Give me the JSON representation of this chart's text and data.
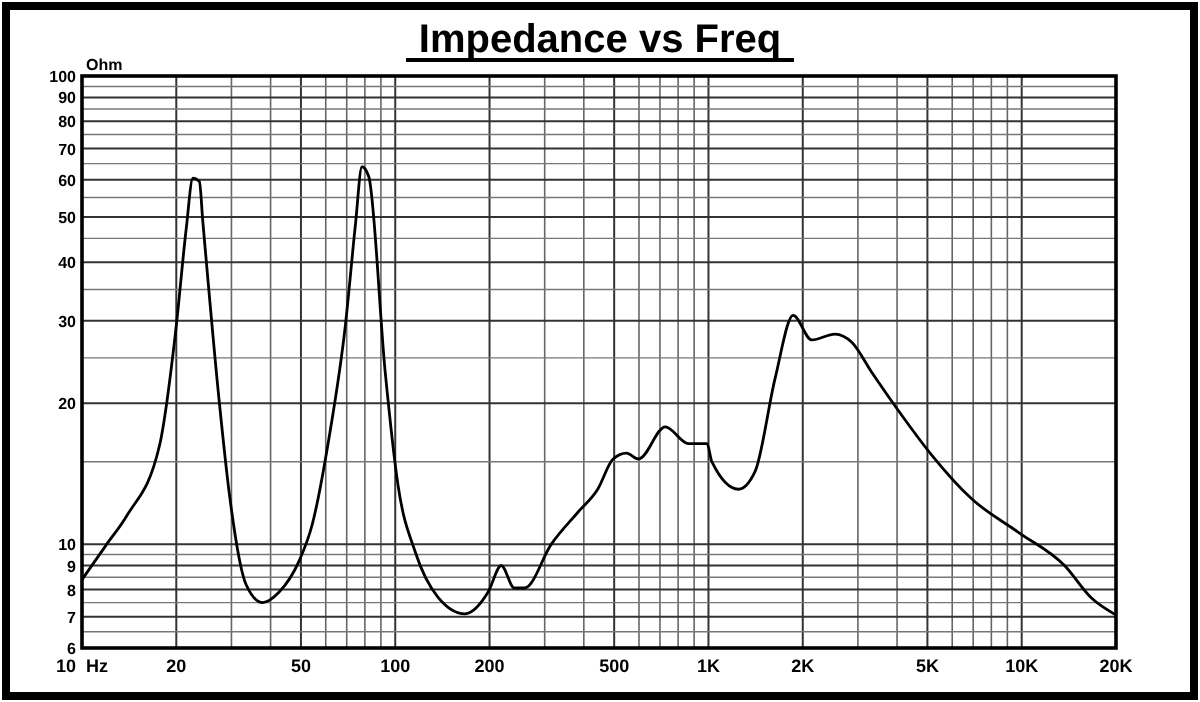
{
  "chart_data": {
    "type": "line",
    "title": "Impedance vs Freq",
    "ylabel": "Ohm",
    "log": "xy",
    "grid": true,
    "marker": "none",
    "line_style": "solid",
    "xlim": [
      10,
      20000
    ],
    "ylim": [
      6,
      100
    ],
    "xticks": [
      {
        "value": 10,
        "label": "10  Hz"
      },
      {
        "value": 20,
        "label": "20"
      },
      {
        "value": 30,
        "label": null
      },
      {
        "value": 40,
        "label": null
      },
      {
        "value": 50,
        "label": "50"
      },
      {
        "value": 60,
        "label": null
      },
      {
        "value": 70,
        "label": null
      },
      {
        "value": 80,
        "label": null
      },
      {
        "value": 90,
        "label": null
      },
      {
        "value": 100,
        "label": "100"
      },
      {
        "value": 200,
        "label": "200"
      },
      {
        "value": 300,
        "label": null
      },
      {
        "value": 400,
        "label": null
      },
      {
        "value": 500,
        "label": "500"
      },
      {
        "value": 600,
        "label": null
      },
      {
        "value": 700,
        "label": null
      },
      {
        "value": 800,
        "label": null
      },
      {
        "value": 900,
        "label": null
      },
      {
        "value": 1000,
        "label": "1K"
      },
      {
        "value": 2000,
        "label": "2K"
      },
      {
        "value": 3000,
        "label": null
      },
      {
        "value": 4000,
        "label": null
      },
      {
        "value": 5000,
        "label": "5K"
      },
      {
        "value": 6000,
        "label": null
      },
      {
        "value": 7000,
        "label": null
      },
      {
        "value": 8000,
        "label": null
      },
      {
        "value": 9000,
        "label": null
      },
      {
        "value": 10000,
        "label": "10K"
      },
      {
        "value": 20000,
        "label": "20K"
      }
    ],
    "yticks": [
      6,
      {
        "value": 6.5,
        "label": null
      },
      7,
      {
        "value": 7.5,
        "label": null
      },
      8,
      {
        "value": 8.5,
        "label": null
      },
      9,
      {
        "value": 9.5,
        "label": null
      },
      10,
      {
        "value": 15,
        "label": null
      },
      20,
      {
        "value": 25,
        "label": null
      },
      30,
      {
        "value": 35,
        "label": null
      },
      40,
      {
        "value": 45,
        "label": null
      },
      50,
      {
        "value": 55,
        "label": null
      },
      60,
      {
        "value": 65,
        "label": null
      },
      70,
      {
        "value": 75,
        "label": null
      },
      80,
      {
        "value": 85,
        "label": null
      },
      90,
      {
        "value": 95,
        "label": null
      },
      100
    ],
    "series": [
      {
        "color": "#000000",
        "x": [
          10,
          12,
          13.9,
          17.7,
          20,
          21.5,
          22.6,
          23.7,
          24.3,
          27.5,
          29.5,
          33.4,
          37.7,
          42.6,
          49.3,
          54.3,
          61.4,
          69.3,
          74.6,
          78.3,
          82.3,
          92.9,
          102,
          116,
          137,
          167,
          198,
          218,
          240,
          259,
          315,
          383,
          443,
          496,
          547,
          598,
          728,
          863,
          990,
          1025,
          1247,
          1409,
          1632,
          1863,
          2137,
          2536,
          2867,
          3320,
          4037,
          5160,
          6920,
          9760,
          13700,
          16700,
          19900
        ],
        "values": [
          8.4,
          10,
          11.5,
          16.3,
          29.3,
          47,
          60.5,
          59.5,
          49,
          19.8,
          12.9,
          8.2,
          7.5,
          7.9,
          9.2,
          11,
          16.8,
          29.3,
          48,
          64,
          61,
          23.3,
          13.4,
          9.6,
          7.7,
          7.1,
          7.9,
          9.0,
          8.06,
          8.06,
          10,
          11.7,
          13.1,
          15.2,
          15.65,
          15.2,
          17.8,
          16.4,
          16.4,
          15.0,
          13.1,
          14.3,
          22.6,
          30.8,
          27.3,
          28.1,
          27.0,
          23.3,
          19.3,
          15.5,
          12.5,
          10.6,
          9.0,
          7.67,
          7.07
        ]
      }
    ]
  }
}
